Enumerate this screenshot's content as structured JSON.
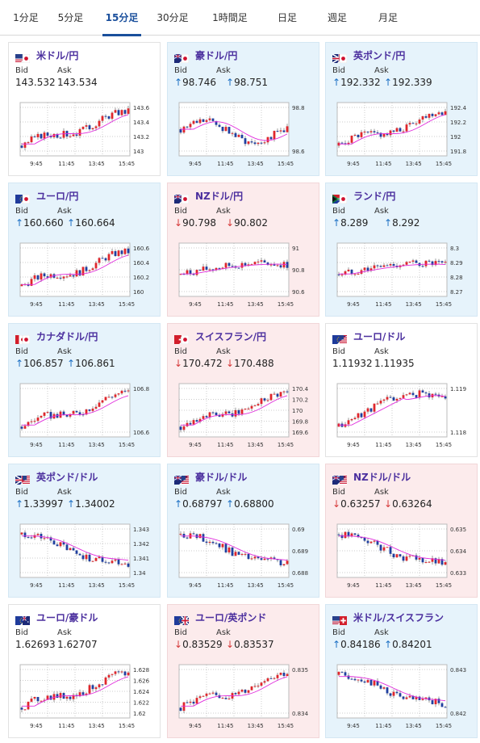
{
  "tabs": [
    {
      "label": "1分足",
      "active": false
    },
    {
      "label": "5分足",
      "active": false
    },
    {
      "label": "15分足",
      "active": true
    },
    {
      "label": "30分足",
      "active": false
    },
    {
      "label": "1時間足",
      "active": false
    },
    {
      "label": "日足",
      "active": false
    },
    {
      "label": "週足",
      "active": false
    },
    {
      "label": "月足",
      "active": false
    }
  ],
  "labels": {
    "bid": "Bid",
    "ask": "Ask"
  },
  "x_ticks": [
    "9:45",
    "11:45",
    "13:45",
    "15:45"
  ],
  "colors": {
    "pair": "#4b2f9e",
    "up_arrow": "#1d70c4",
    "down_arrow": "#d63a3a",
    "candle_up": "#e0262c",
    "candle_down": "#1f3fa0",
    "ma": "#e02bdc",
    "card_blue": "#e6f3fb",
    "card_pink": "#fcebec",
    "tab_active": "#1a4f9c"
  },
  "cards": [
    {
      "pair": "米ドル/円",
      "flag": "us-jp-flag",
      "bg": "white",
      "dir": "",
      "bid": "143.532",
      "ask": "143.534",
      "y_ticks": [
        "143.6",
        "143.4",
        "143.2",
        "143"
      ],
      "trend": "up"
    },
    {
      "pair": "豪ドル/円",
      "flag": "au-jp-flag",
      "bg": "blue",
      "dir": "up",
      "bid": "98.746",
      "ask": "98.751",
      "y_ticks": [
        "98.8",
        "98.6"
      ],
      "trend": "flat"
    },
    {
      "pair": "英ポンド/円",
      "flag": "gb-jp-flag",
      "bg": "blue",
      "dir": "up",
      "bid": "192.332",
      "ask": "192.339",
      "y_ticks": [
        "192.4",
        "192.2",
        "192",
        "191.8"
      ],
      "trend": "up"
    },
    {
      "pair": "ユーロ/円",
      "flag": "eu-jp-flag",
      "bg": "blue",
      "dir": "up",
      "bid": "160.660",
      "ask": "160.664",
      "y_ticks": [
        "160.6",
        "160.4",
        "160.2",
        "160"
      ],
      "trend": "up"
    },
    {
      "pair": "NZドル/円",
      "flag": "nz-jp-flag",
      "bg": "pink",
      "dir": "down",
      "bid": "90.798",
      "ask": "90.802",
      "y_ticks": [
        "91",
        "90.8",
        "90.6"
      ],
      "trend": "humpdown"
    },
    {
      "pair": "ランド/円",
      "flag": "za-jp-flag",
      "bg": "blue",
      "dir": "up",
      "bid": "8.289",
      "ask": "8.292",
      "y_ticks": [
        "8.3",
        "8.29",
        "8.28",
        "8.27"
      ],
      "trend": "humpdown"
    },
    {
      "pair": "カナダドル/円",
      "flag": "ca-jp-flag",
      "bg": "blue",
      "dir": "up",
      "bid": "106.857",
      "ask": "106.861",
      "y_ticks": [
        "106.8",
        "106.6"
      ],
      "trend": "up"
    },
    {
      "pair": "スイスフラン/円",
      "flag": "ch-jp-flag",
      "bg": "pink",
      "dir": "down",
      "bid": "170.472",
      "ask": "170.488",
      "y_ticks": [
        "170.4",
        "170.2",
        "170",
        "169.8",
        "169.6"
      ],
      "trend": "up"
    },
    {
      "pair": "ユーロ/ドル",
      "flag": "eu-us-flag",
      "bg": "white",
      "dir": "",
      "bid": "1.11932",
      "ask": "1.11935",
      "y_ticks": [
        "1.119",
        "1.118"
      ],
      "trend": "upflat"
    },
    {
      "pair": "英ポンド/ドル",
      "flag": "gb-us-flag",
      "bg": "blue",
      "dir": "up",
      "bid": "1.33997",
      "ask": "1.34002",
      "y_ticks": [
        "1.343",
        "1.342",
        "1.341",
        "1.34"
      ],
      "trend": "down"
    },
    {
      "pair": "豪ドル/ドル",
      "flag": "au-us-flag",
      "bg": "blue",
      "dir": "up",
      "bid": "0.68797",
      "ask": "0.68800",
      "y_ticks": [
        "0.69",
        "0.689",
        "0.688"
      ],
      "trend": "down"
    },
    {
      "pair": "NZドル/ドル",
      "flag": "nz-us-flag",
      "bg": "pink",
      "dir": "down",
      "bid": "0.63257",
      "ask": "0.63264",
      "y_ticks": [
        "0.635",
        "0.634",
        "0.633"
      ],
      "trend": "down"
    },
    {
      "pair": "ユーロ/豪ドル",
      "flag": "eu-au-flag",
      "bg": "white",
      "dir": "",
      "bid": "1.62693",
      "ask": "1.62707",
      "y_ticks": [
        "1.628",
        "1.626",
        "1.624",
        "1.622",
        "1.62"
      ],
      "trend": "up"
    },
    {
      "pair": "ユーロ/英ポンド",
      "flag": "eu-gb-flag",
      "bg": "pink",
      "dir": "down",
      "bid": "0.83529",
      "ask": "0.83537",
      "y_ticks": [
        "0.835",
        "0.834"
      ],
      "trend": "up"
    },
    {
      "pair": "米ドル/スイスフラン",
      "flag": "us-ch-flag",
      "bg": "blue",
      "dir": "up",
      "bid": "0.84186",
      "ask": "0.84201",
      "y_ticks": [
        "0.843",
        "0.842"
      ],
      "trend": "down"
    }
  ]
}
